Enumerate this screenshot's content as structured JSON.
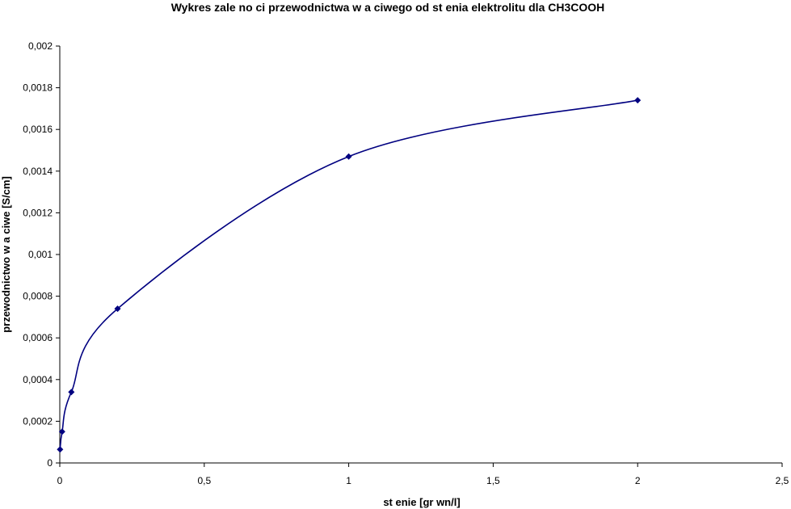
{
  "chart_data": {
    "type": "line",
    "title": "Wykres zale  no  ci przewodnictwa w a  ciwego od st    enia elektrolitu dla CH3COOH",
    "xlabel": "st    enie [gr  wn/l]",
    "ylabel": "przewodnictwo w  a  ciwe  [S/cm]",
    "xlim": [
      0,
      2.5
    ],
    "ylim": [
      0,
      0.002
    ],
    "x_ticks": [
      0,
      0.5,
      1,
      1.5,
      2,
      2.5
    ],
    "x_tick_labels": [
      "0",
      "0,5",
      "1",
      "1,5",
      "2",
      "2,5"
    ],
    "y_ticks": [
      0,
      0.0002,
      0.0004,
      0.0006,
      0.0008,
      0.001,
      0.0012,
      0.0014,
      0.0016,
      0.0018,
      0.002
    ],
    "y_tick_labels": [
      "0",
      "0,0002",
      "0,0004",
      "0,0006",
      "0,0008",
      "0,001",
      "0,0012",
      "0,0014",
      "0,0016",
      "0,0018",
      "0,002"
    ],
    "grid": false,
    "smooth": true,
    "series": [
      {
        "color": "#000080",
        "marker": "diamond",
        "x": [
          0.001,
          0.008,
          0.04,
          0.2,
          1,
          2
        ],
        "y": [
          6.5e-05,
          0.00015,
          0.00034,
          0.00074,
          0.00147,
          0.00174
        ]
      }
    ]
  }
}
